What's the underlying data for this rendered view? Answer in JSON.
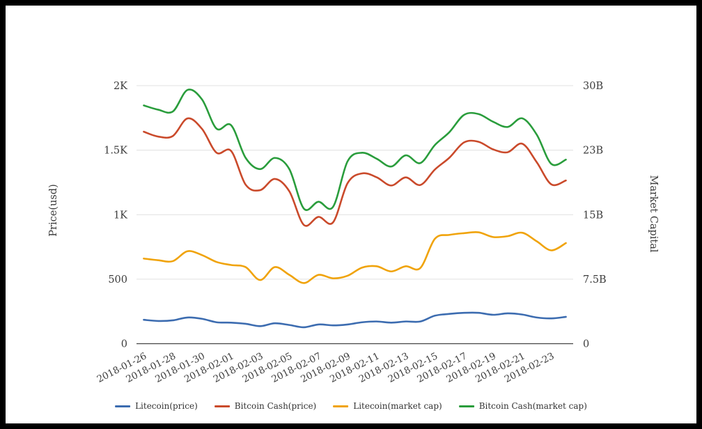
{
  "page": {
    "background": "#ffffff",
    "frame_color": "#000000"
  },
  "chart_data": {
    "type": "line",
    "smooth": true,
    "grid": true,
    "title": "",
    "xlabel": "",
    "ylabel_left": "Price(usd)",
    "ylabel_right": "Market Capital",
    "legend_position": "bottom",
    "x": [
      "2018-01-26",
      "2018-01-27",
      "2018-01-28",
      "2018-01-29",
      "2018-01-30",
      "2018-01-31",
      "2018-02-01",
      "2018-02-02",
      "2018-02-03",
      "2018-02-04",
      "2018-02-05",
      "2018-02-06",
      "2018-02-07",
      "2018-02-08",
      "2018-02-09",
      "2018-02-10",
      "2018-02-11",
      "2018-02-12",
      "2018-02-13",
      "2018-02-14",
      "2018-02-15",
      "2018-02-16",
      "2018-02-17",
      "2018-02-18",
      "2018-02-19",
      "2018-02-20",
      "2018-02-21",
      "2018-02-22",
      "2018-02-23",
      "2018-02-24"
    ],
    "x_tick_every": 2,
    "axes": {
      "left": {
        "min": 0,
        "max": 2000,
        "tick_values": [
          0,
          500,
          1000,
          1500,
          2000
        ],
        "tick_labels": [
          "0",
          "500",
          "1K",
          "1.5K",
          "2K"
        ]
      },
      "right": {
        "min": 0,
        "max": 30,
        "tick_values": [
          0,
          7.5,
          15,
          22.5,
          30
        ],
        "tick_labels": [
          "0",
          "7.5B",
          "15B",
          "23B",
          "30B"
        ]
      }
    },
    "series": [
      {
        "name": "Litecoin(price)",
        "axis": "left",
        "color": "#3c6cb0",
        "values": [
          185,
          176,
          181,
          203,
          193,
          166,
          163,
          154,
          136,
          158,
          145,
          127,
          149,
          142,
          149,
          166,
          172,
          163,
          172,
          172,
          217,
          231,
          239,
          239,
          224,
          235,
          226,
          203,
          196,
          208
        ]
      },
      {
        "name": "Bitcoin Cash(price)",
        "axis": "left",
        "color": "#ca4a2b",
        "values": [
          1643,
          1605,
          1610,
          1746,
          1665,
          1480,
          1494,
          1232,
          1190,
          1277,
          1181,
          920,
          983,
          940,
          1244,
          1320,
          1290,
          1226,
          1289,
          1230,
          1350,
          1442,
          1560,
          1565,
          1506,
          1484,
          1550,
          1406,
          1235,
          1265
        ]
      },
      {
        "name": "Litecoin(market cap)",
        "axis": "right",
        "color": "#f0a30a",
        "values": [
          9.9,
          9.7,
          9.6,
          10.75,
          10.3,
          9.5,
          9.15,
          8.9,
          7.4,
          8.9,
          8.0,
          7.05,
          8.0,
          7.6,
          7.9,
          8.85,
          9.0,
          8.4,
          9.0,
          8.8,
          12.2,
          12.65,
          12.85,
          12.95,
          12.4,
          12.5,
          12.9,
          11.9,
          10.85,
          11.7
        ]
      },
      {
        "name": "Bitcoin Cash(market cap)",
        "axis": "right",
        "color": "#2a9d3c",
        "values": [
          27.7,
          27.2,
          27.0,
          29.5,
          28.4,
          25.0,
          25.4,
          21.6,
          20.3,
          21.6,
          20.3,
          15.7,
          16.5,
          15.9,
          21.2,
          22.2,
          21.5,
          20.6,
          21.9,
          21.0,
          23.1,
          24.6,
          26.6,
          26.7,
          25.8,
          25.2,
          26.2,
          24.3,
          20.9,
          21.4
        ]
      }
    ],
    "style": {
      "gridline_color": "#e0e0e0",
      "axisline_color": "#444444",
      "tick_label_color": "#3d3d3d",
      "legend_text_color": "#333333",
      "line_width": 2.6
    }
  }
}
